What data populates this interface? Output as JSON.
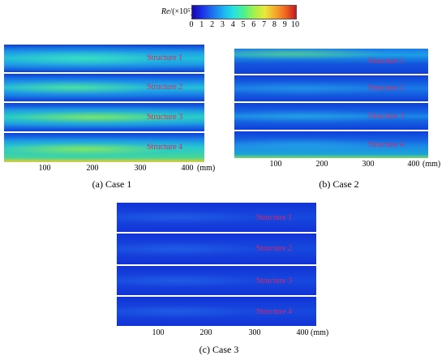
{
  "colorbar": {
    "label_var": "Re",
    "label_unit": "/(×10⁵)",
    "ticks": [
      "0",
      "1",
      "2",
      "3",
      "4",
      "5",
      "6",
      "7",
      "8",
      "9",
      "10"
    ]
  },
  "panels": [
    {
      "caption": "(a) Case 1",
      "structures": [
        "Structure 1",
        "Structure 2",
        "Structure 3",
        "Structure 4"
      ],
      "x_ticks": [
        "100",
        "200",
        "300",
        "400"
      ],
      "x_unit": "(mm)"
    },
    {
      "caption": "(b) Case 2",
      "structures": [
        "Structure 1",
        "Structure 2",
        "Structure 3",
        "Structure 4"
      ],
      "x_ticks": [
        "100",
        "200",
        "300",
        "400"
      ],
      "x_unit": "(mm)"
    },
    {
      "caption": "(c) Case 3",
      "structures": [
        "Structure 1",
        "Structure 2",
        "Structure 3",
        "Structure 4"
      ],
      "x_ticks": [
        "100",
        "200",
        "300",
        "400"
      ],
      "x_unit": "(mm)"
    }
  ]
}
